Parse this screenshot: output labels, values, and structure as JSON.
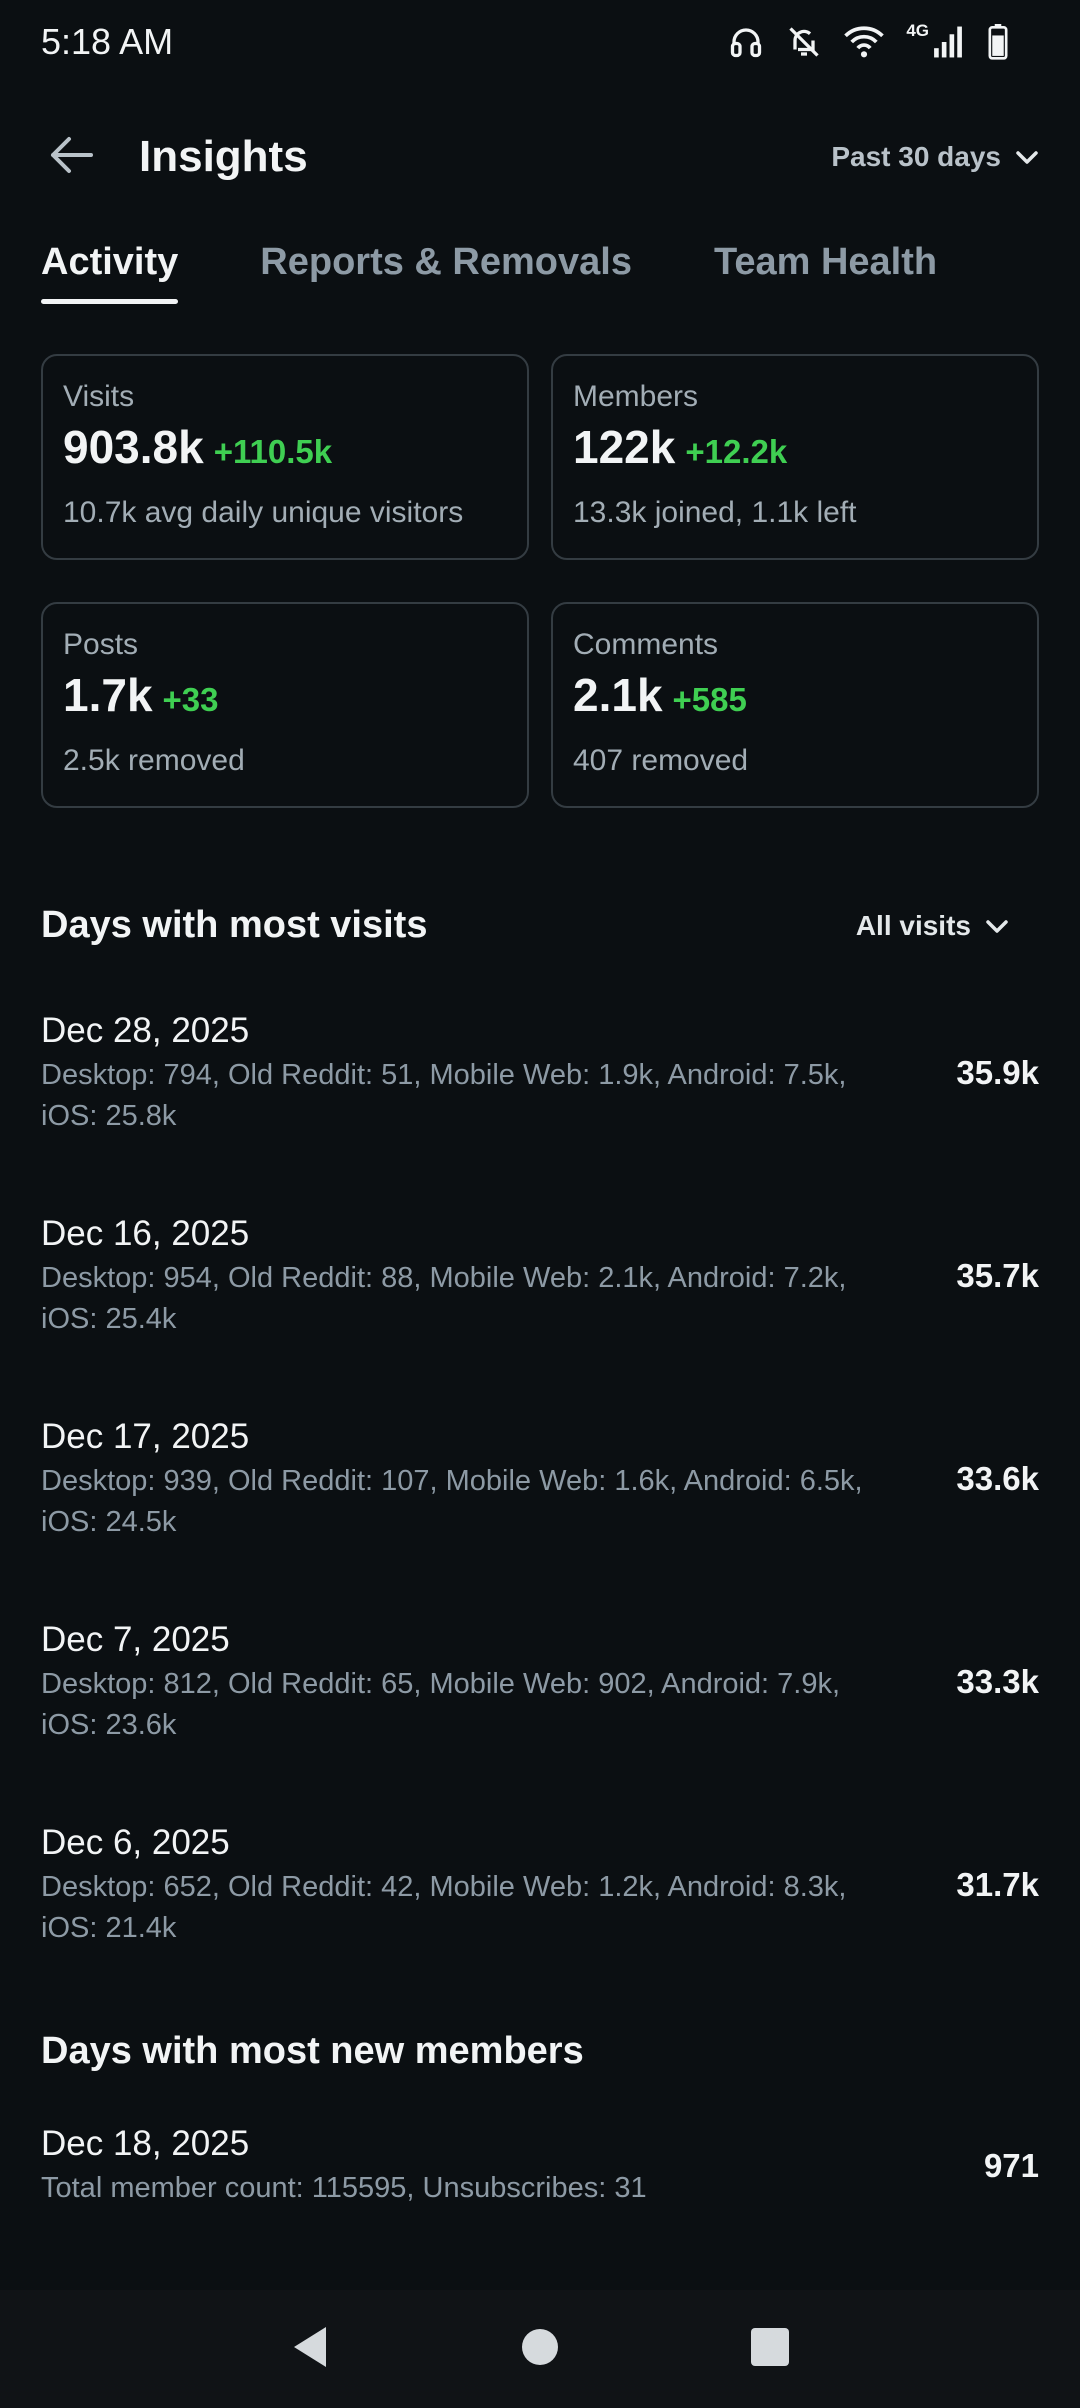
{
  "status_bar": {
    "time": "5:18 AM",
    "network_label": "4G",
    "icons": [
      "headphones-icon",
      "bell-off-icon",
      "wifi-icon",
      "cell-signal-icon",
      "battery-icon"
    ]
  },
  "header": {
    "title": "Insights",
    "range_label": "Past 30 days"
  },
  "tabs": [
    {
      "label": "Activity",
      "active": true
    },
    {
      "label": "Reports & Removals",
      "active": false
    },
    {
      "label": "Team Health",
      "active": false
    }
  ],
  "cards": [
    {
      "label": "Visits",
      "value": "903.8k",
      "delta": "+110.5k",
      "sub": "10.7k avg daily unique visitors"
    },
    {
      "label": "Members",
      "value": "122k",
      "delta": "+12.2k",
      "sub": "13.3k joined, 1.1k left"
    },
    {
      "label": "Posts",
      "value": "1.7k",
      "delta": "+33",
      "sub": "2.5k removed"
    },
    {
      "label": "Comments",
      "value": "2.1k",
      "delta": "+585",
      "sub": "407 removed"
    }
  ],
  "most_visits": {
    "title": "Days with most visits",
    "filter_label": "All visits",
    "days": [
      {
        "date": "Dec 28, 2025",
        "detail": "Desktop: 794, Old Reddit: 51, Mobile Web: 1.9k, Android: 7.5k, iOS: 25.8k",
        "total": "35.9k"
      },
      {
        "date": "Dec 16, 2025",
        "detail": "Desktop: 954, Old Reddit: 88, Mobile Web: 2.1k, Android: 7.2k, iOS: 25.4k",
        "total": "35.7k"
      },
      {
        "date": "Dec 17, 2025",
        "detail": "Desktop: 939, Old Reddit: 107, Mobile Web: 1.6k, Android: 6.5k, iOS: 24.5k",
        "total": "33.6k"
      },
      {
        "date": "Dec 7, 2025",
        "detail": "Desktop: 812, Old Reddit: 65, Mobile Web: 902, Android: 7.9k, iOS: 23.6k",
        "total": "33.3k"
      },
      {
        "date": "Dec 6, 2025",
        "detail": "Desktop: 652, Old Reddit: 42, Mobile Web: 1.2k, Android: 8.3k, iOS: 21.4k",
        "total": "31.7k"
      }
    ]
  },
  "most_members": {
    "title": "Days with most new members",
    "days": [
      {
        "date": "Dec 18, 2025",
        "detail": "Total member count: 115595, Unsubscribes: 31",
        "total": "971"
      }
    ]
  },
  "colors": {
    "background": "#0b0f12",
    "delta_positive": "#3fcf52",
    "muted_text": "#8d9aa5",
    "card_border": "#343c42"
  }
}
